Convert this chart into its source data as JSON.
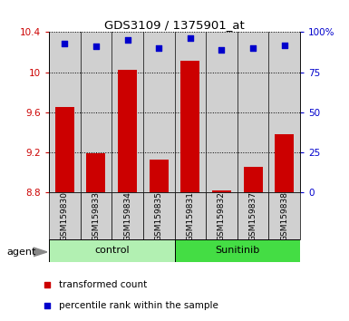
{
  "title": "GDS3109 / 1375901_at",
  "samples": [
    "GSM159830",
    "GSM159833",
    "GSM159834",
    "GSM159835",
    "GSM159831",
    "GSM159832",
    "GSM159837",
    "GSM159838"
  ],
  "transformed_counts": [
    9.65,
    9.19,
    10.02,
    9.13,
    10.11,
    8.82,
    9.06,
    9.38
  ],
  "percentile_ranks": [
    93,
    91,
    95,
    90,
    96,
    89,
    90,
    92
  ],
  "ylim_left": [
    8.8,
    10.4
  ],
  "ylim_right": [
    0,
    100
  ],
  "yticks_left": [
    8.8,
    9.2,
    9.6,
    10.0,
    10.4
  ],
  "yticks_right": [
    0,
    25,
    50,
    75,
    100
  ],
  "ytick_labels_left": [
    "8.8",
    "9.2",
    "9.6",
    "10",
    "10.4"
  ],
  "ytick_labels_right": [
    "0",
    "25",
    "50",
    "75",
    "100%"
  ],
  "group_names": [
    "control",
    "Sunitinib"
  ],
  "group_ranges": [
    [
      0,
      4
    ],
    [
      4,
      8
    ]
  ],
  "group_colors": [
    "#b2f0b2",
    "#44dd44"
  ],
  "bar_color": "#cc0000",
  "marker_color": "#0000cc",
  "bar_width": 0.6,
  "agent_label": "agent",
  "legend_items": [
    {
      "color": "#cc0000",
      "label": "transformed count"
    },
    {
      "color": "#0000cc",
      "label": "percentile rank within the sample"
    }
  ],
  "sample_area_color": "#d0d0d0",
  "label_color_left": "#cc0000",
  "label_color_right": "#0000cc",
  "bg_color": "#ffffff"
}
